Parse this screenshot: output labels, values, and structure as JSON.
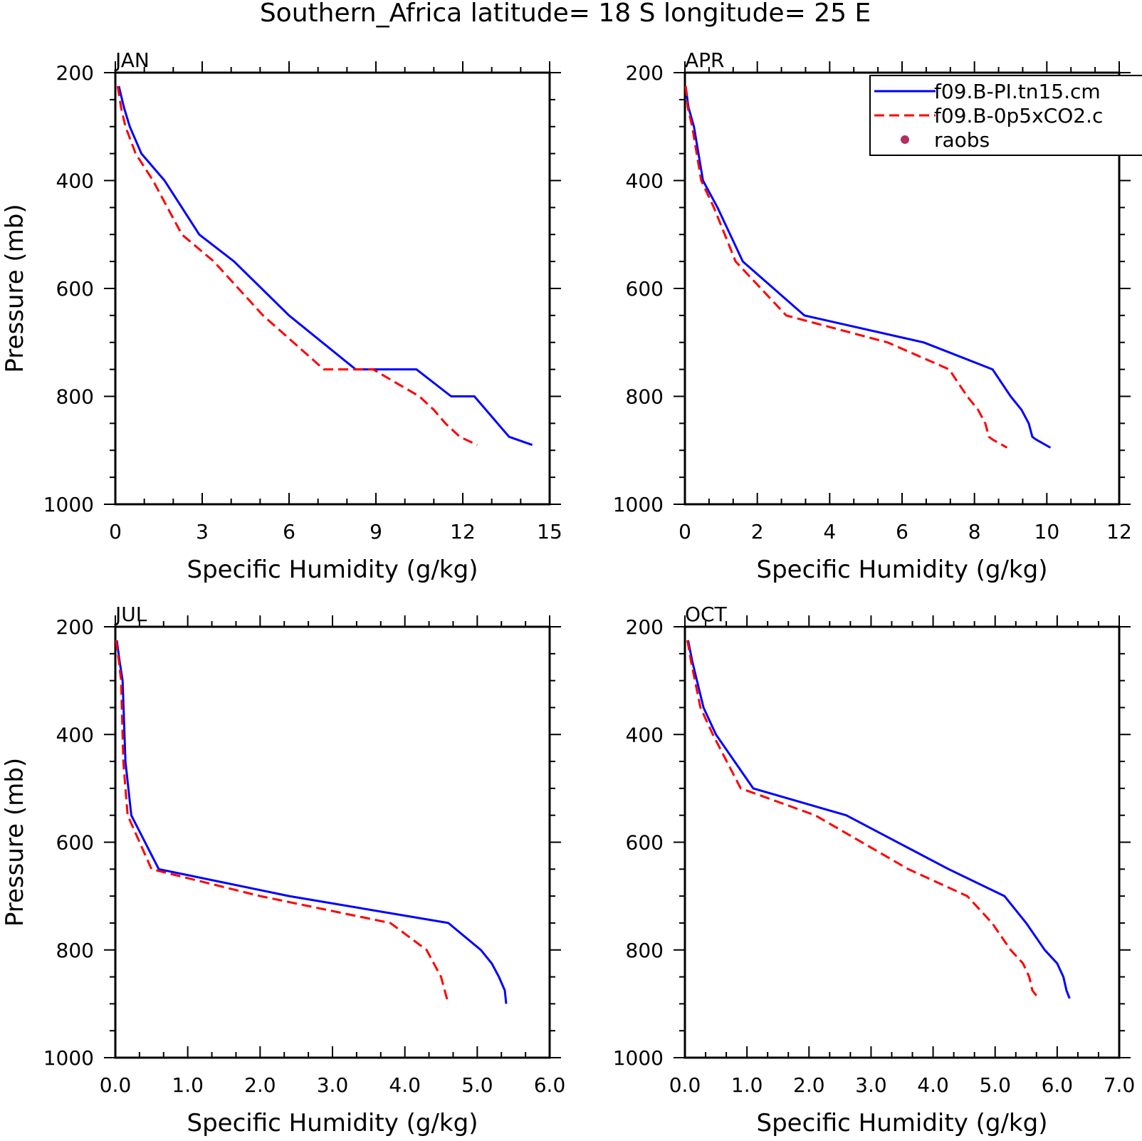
{
  "chart_data": {
    "title": "Southern_Africa  latitude= 18 S longitude= 25 E",
    "legend": {
      "placement": "top-right",
      "entries": [
        {
          "label": "f09.B-PI.tn15.cm",
          "color": "#0000ff",
          "style": "solid"
        },
        {
          "label": "f09.B-0p5xCO2.c",
          "color": "#ff0000",
          "style": "dashed"
        },
        {
          "label": "raobs",
          "color": "#b03060",
          "style": "marker"
        }
      ]
    },
    "panels": [
      {
        "type": "line",
        "label": "JAN",
        "xlabel": "Specific Humidity (g/kg)",
        "ylabel": "Pressure (mb)",
        "xlim": [
          0,
          15
        ],
        "xticks": [
          "0",
          "3",
          "6",
          "9",
          "12",
          "15"
        ],
        "ylim": [
          1000,
          200
        ],
        "yticks": [
          "200",
          "400",
          "600",
          "800",
          "1000"
        ],
        "series": [
          {
            "name": "f09.B-PI.tn15.cm",
            "color": "#0000ff",
            "style": "solid",
            "x": [
              0.12,
              0.3,
              0.5,
              0.9,
              1.7,
              2.9,
              4.1,
              6.0,
              8.3,
              10.4,
              11.6,
              12.4,
              12.8,
              13.2,
              13.6,
              14.4
            ],
            "y": [
              225,
              265,
              300,
              350,
              400,
              500,
              550,
              650,
              750,
              750,
              800,
              800,
              825,
              850,
              875,
              890
            ]
          },
          {
            "name": "f09.B-0p5xCO2.c",
            "color": "#ff0000",
            "style": "dashed",
            "x": [
              0.08,
              0.2,
              0.35,
              0.7,
              1.3,
              2.3,
              3.4,
              5.1,
              7.2,
              8.9,
              10.5,
              11.0,
              11.4,
              11.9,
              12.5
            ],
            "y": [
              225,
              265,
              300,
              350,
              400,
              500,
              550,
              650,
              750,
              750,
              800,
              825,
              850,
              875,
              890
            ]
          }
        ]
      },
      {
        "type": "line",
        "label": "APR",
        "xlabel": "Specific Humidity (g/kg)",
        "ylabel": "",
        "xlim": [
          0,
          12
        ],
        "xticks": [
          "0",
          "2",
          "4",
          "6",
          "8",
          "10",
          "12"
        ],
        "ylim": [
          1000,
          200
        ],
        "yticks": [
          "200",
          "400",
          "600",
          "800",
          "1000"
        ],
        "series": [
          {
            "name": "f09.B-PI.tn15.cm",
            "color": "#0000ff",
            "style": "solid",
            "x": [
              0.02,
              0.1,
              0.25,
              0.5,
              0.9,
              1.6,
              3.3,
              6.6,
              8.5,
              9.0,
              9.3,
              9.5,
              9.6,
              9.7,
              10.1
            ],
            "y": [
              225,
              265,
              300,
              400,
              450,
              550,
              650,
              700,
              750,
              800,
              825,
              850,
              875,
              880,
              895
            ]
          },
          {
            "name": "f09.B-0p5xCO2.c",
            "color": "#ff0000",
            "style": "dashed",
            "x": [
              0.02,
              0.08,
              0.2,
              0.45,
              0.8,
              1.4,
              2.8,
              5.6,
              7.3,
              7.8,
              8.1,
              8.3,
              8.4,
              8.5,
              8.9
            ],
            "y": [
              225,
              265,
              300,
              400,
              450,
              550,
              650,
              700,
              750,
              800,
              825,
              850,
              875,
              880,
              895
            ]
          }
        ]
      },
      {
        "type": "line",
        "label": "JUL",
        "xlabel": "Specific Humidity (g/kg)",
        "ylabel": "Pressure (mb)",
        "xlim": [
          0,
          6
        ],
        "xticks": [
          "0.0",
          "1.0",
          "2.0",
          "3.0",
          "4.0",
          "5.0",
          "6.0"
        ],
        "ylim": [
          1000,
          200
        ],
        "yticks": [
          "200",
          "400",
          "600",
          "800",
          "1000"
        ],
        "series": [
          {
            "name": "f09.B-PI.tn15.cm",
            "color": "#0000ff",
            "style": "solid",
            "x": [
              0.02,
              0.06,
              0.1,
              0.14,
              0.18,
              0.22,
              0.6,
              2.4,
              4.6,
              5.05,
              5.2,
              5.3,
              5.38,
              5.4
            ],
            "y": [
              225,
              265,
              300,
              450,
              500,
              550,
              650,
              700,
              750,
              800,
              825,
              850,
              875,
              900
            ]
          },
          {
            "name": "f09.B-0p5xCO2.c",
            "color": "#ff0000",
            "style": "dashed",
            "x": [
              0.01,
              0.05,
              0.08,
              0.11,
              0.14,
              0.17,
              0.5,
              2.0,
              3.8,
              4.3,
              4.4,
              4.5,
              4.55,
              4.6
            ],
            "y": [
              225,
              265,
              300,
              450,
              500,
              550,
              650,
              700,
              750,
              800,
              825,
              850,
              875,
              900
            ]
          }
        ]
      },
      {
        "type": "line",
        "label": "OCT",
        "xlabel": "Specific Humidity (g/kg)",
        "ylabel": "",
        "xlim": [
          0,
          7
        ],
        "xticks": [
          "0.0",
          "1.0",
          "2.0",
          "3.0",
          "4.0",
          "5.0",
          "6.0",
          "7.0"
        ],
        "ylim": [
          1000,
          200
        ],
        "yticks": [
          "200",
          "400",
          "600",
          "800",
          "1000"
        ],
        "series": [
          {
            "name": "f09.B-PI.tn15.cm",
            "color": "#0000ff",
            "style": "solid",
            "x": [
              0.05,
              0.12,
              0.3,
              0.5,
              1.1,
              2.6,
              4.25,
              5.15,
              5.5,
              5.8,
              6.0,
              6.1,
              6.15,
              6.2
            ],
            "y": [
              225,
              265,
              350,
              400,
              500,
              550,
              650,
              700,
              750,
              800,
              825,
              850,
              875,
              890
            ]
          },
          {
            "name": "f09.B-0p5xCO2.c",
            "color": "#ff0000",
            "style": "dashed",
            "x": [
              0.04,
              0.1,
              0.25,
              0.45,
              0.9,
              2.1,
              3.6,
              4.55,
              4.95,
              5.25,
              5.45,
              5.55,
              5.6,
              5.7
            ],
            "y": [
              225,
              265,
              350,
              400,
              500,
              550,
              650,
              700,
              750,
              800,
              825,
              850,
              875,
              890
            ]
          }
        ]
      }
    ]
  }
}
